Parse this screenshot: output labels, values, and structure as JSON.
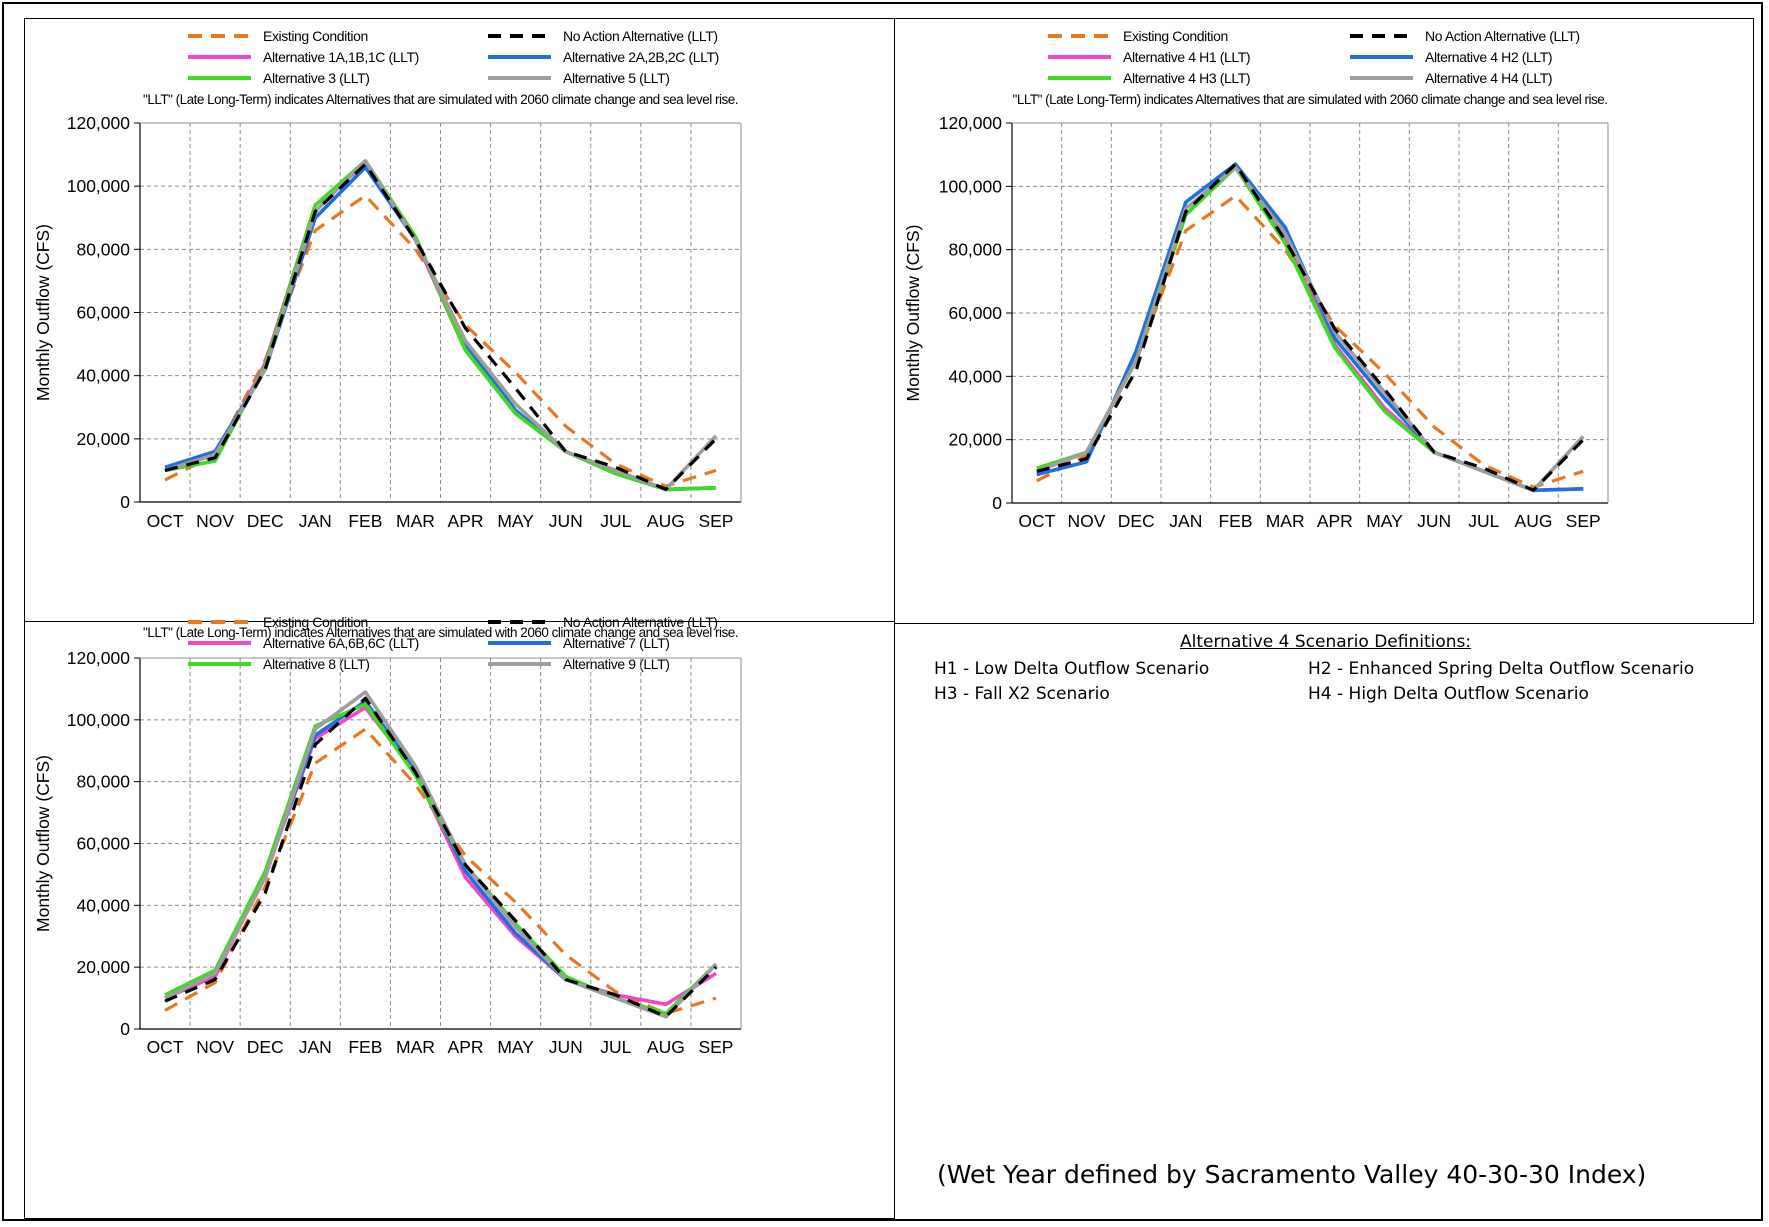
{
  "chart_data": [
    {
      "type": "line",
      "ylabel": "Monthly Outflow (CFS)",
      "note": "\"LLT\" (Late Long-Term) indicates Alternatives that are simulated with 2060 climate change and sea level rise.",
      "ylim": [
        0,
        120000
      ],
      "yticks": [
        "0",
        "20,000",
        "40,000",
        "60,000",
        "80,000",
        "100,000",
        "120,000"
      ],
      "categories": [
        "OCT",
        "NOV",
        "DEC",
        "JAN",
        "FEB",
        "MAR",
        "APR",
        "MAY",
        "JUN",
        "JUL",
        "AUG",
        "SEP"
      ],
      "grid": true,
      "legend_position": "top",
      "series": [
        {
          "name": "Existing Condition",
          "color": "#E87722",
          "dash": "dashed",
          "values": [
            7000,
            15000,
            45000,
            86000,
            97000,
            80000,
            56000,
            41000,
            24000,
            12000,
            5000,
            10000
          ]
        },
        {
          "name": "No Action Alternative (LLT)",
          "color": "#000000",
          "dash": "dashed",
          "values": [
            10000,
            14000,
            42000,
            92000,
            107000,
            83000,
            55000,
            36000,
            16000,
            11000,
            4000,
            20000
          ]
        },
        {
          "name": "Alternative 1A,1B,1C (LLT)",
          "color": "#F046C8",
          "dash": "solid",
          "values": [
            10000,
            13000,
            44000,
            94000,
            107000,
            83000,
            48000,
            28000,
            16000,
            9000,
            4000,
            4500
          ]
        },
        {
          "name": "Alternative 2A,2B,2C (LLT)",
          "color": "#1F6FE0",
          "dash": "solid",
          "values": [
            11000,
            16000,
            42000,
            90000,
            106000,
            83000,
            50000,
            29000,
            16000,
            9000,
            4000,
            4500
          ]
        },
        {
          "name": "Alternative 3 (LLT)",
          "color": "#3CDC1E",
          "dash": "solid",
          "values": [
            10000,
            13000,
            43000,
            94000,
            108000,
            84000,
            48000,
            28000,
            16000,
            9000,
            4000,
            4500
          ]
        },
        {
          "name": "Alternative 5 (LLT)",
          "color": "#9E9E9E",
          "dash": "solid",
          "values": [
            10000,
            15000,
            42000,
            92000,
            108000,
            83000,
            51000,
            31000,
            16000,
            10000,
            4000,
            21000
          ]
        }
      ]
    },
    {
      "type": "line",
      "ylabel": "Monthly Outflow (CFS)",
      "note": "\"LLT\" (Late Long-Term) indicates Alternatives that are simulated with 2060 climate change and sea level rise.",
      "ylim": [
        0,
        120000
      ],
      "yticks": [
        "0",
        "20,000",
        "40,000",
        "60,000",
        "80,000",
        "100,000",
        "120,000"
      ],
      "categories": [
        "OCT",
        "NOV",
        "DEC",
        "JAN",
        "FEB",
        "MAR",
        "APR",
        "MAY",
        "JUN",
        "JUL",
        "AUG",
        "SEP"
      ],
      "grid": true,
      "legend_position": "top",
      "series": [
        {
          "name": "Existing Condition",
          "color": "#E87722",
          "dash": "dashed",
          "values": [
            7000,
            15000,
            45000,
            86000,
            97000,
            80000,
            56000,
            41000,
            24000,
            12000,
            5000,
            10000
          ]
        },
        {
          "name": "No Action Alternative (LLT)",
          "color": "#000000",
          "dash": "dashed",
          "values": [
            10000,
            14000,
            42000,
            92000,
            107000,
            83000,
            55000,
            36000,
            16000,
            11000,
            4000,
            20000
          ]
        },
        {
          "name": "Alternative 4 H1 (LLT)",
          "color": "#F046C8",
          "dash": "solid",
          "values": [
            10000,
            16000,
            45000,
            91000,
            107000,
            83000,
            50000,
            30000,
            16000,
            10000,
            4000,
            4500
          ]
        },
        {
          "name": "Alternative 4 H2 (LLT)",
          "color": "#1F6FE0",
          "dash": "solid",
          "values": [
            9000,
            13000,
            48000,
            95000,
            107000,
            87000,
            52000,
            33000,
            16000,
            10000,
            4000,
            4500
          ]
        },
        {
          "name": "Alternative 4 H3 (LLT)",
          "color": "#3CDC1E",
          "dash": "solid",
          "values": [
            11000,
            16000,
            45000,
            91000,
            106000,
            82000,
            49000,
            29000,
            16000,
            10000,
            4000,
            21000
          ]
        },
        {
          "name": "Alternative 4 H4 (LLT)",
          "color": "#9E9E9E",
          "dash": "solid",
          "values": [
            10000,
            16000,
            45000,
            93000,
            106000,
            85000,
            54000,
            35000,
            16000,
            10000,
            4000,
            21000
          ]
        }
      ]
    },
    {
      "type": "line",
      "ylabel": "Monthly Outflow (CFS)",
      "note": "\"LLT\" (Late Long-Term) indicates Alternatives that are simulated with 2060 climate change and sea level rise.",
      "ylim": [
        0,
        120000
      ],
      "yticks": [
        "0",
        "20,000",
        "40,000",
        "60,000",
        "80,000",
        "100,000",
        "120,000"
      ],
      "categories": [
        "OCT",
        "NOV",
        "DEC",
        "JAN",
        "FEB",
        "MAR",
        "APR",
        "MAY",
        "JUN",
        "JUL",
        "AUG",
        "SEP"
      ],
      "grid": true,
      "legend_position": "top",
      "series": [
        {
          "name": "Existing Condition",
          "color": "#E87722",
          "dash": "dashed",
          "values": [
            6000,
            15000,
            46000,
            86000,
            97000,
            79000,
            56000,
            41000,
            24000,
            12000,
            5000,
            10000
          ]
        },
        {
          "name": "No Action Alternative (LLT)",
          "color": "#000000",
          "dash": "dashed",
          "values": [
            9000,
            16000,
            44000,
            92000,
            107000,
            83000,
            53000,
            35000,
            16000,
            11000,
            4000,
            20000
          ]
        },
        {
          "name": "Alternative 6A,6B,6C (LLT)",
          "color": "#F046C8",
          "dash": "solid",
          "values": [
            10000,
            17000,
            50000,
            94000,
            104000,
            83000,
            49000,
            30000,
            16000,
            11000,
            8000,
            18000
          ]
        },
        {
          "name": "Alternative 7 (LLT)",
          "color": "#1F6FE0",
          "dash": "solid",
          "values": [
            10000,
            18000,
            50000,
            95000,
            106000,
            84000,
            51000,
            31000,
            16000,
            10000,
            4000,
            21000
          ]
        },
        {
          "name": "Alternative 8 (LLT)",
          "color": "#3CDC1E",
          "dash": "solid",
          "values": [
            11000,
            19000,
            51000,
            98000,
            105000,
            82000,
            53000,
            34000,
            17000,
            10000,
            5000,
            21000
          ]
        },
        {
          "name": "Alternative 9 (LLT)",
          "color": "#9E9E9E",
          "dash": "solid",
          "values": [
            10000,
            18000,
            49000,
            97000,
            109000,
            85000,
            53000,
            33000,
            16000,
            10000,
            4000,
            21000
          ]
        }
      ]
    }
  ],
  "definitions": {
    "title": "Alternative 4 Scenario Definitions:",
    "h1": "H1 - Low Delta Outflow Scenario",
    "h2": "H2 - Enhanced Spring Delta Outflow Scenario",
    "h3": "H3 - Fall X2 Scenario",
    "h4": "H4 - High Delta Outflow Scenario"
  },
  "footnote": "(Wet Year defined by Sacramento Valley 40-30-30 Index)"
}
